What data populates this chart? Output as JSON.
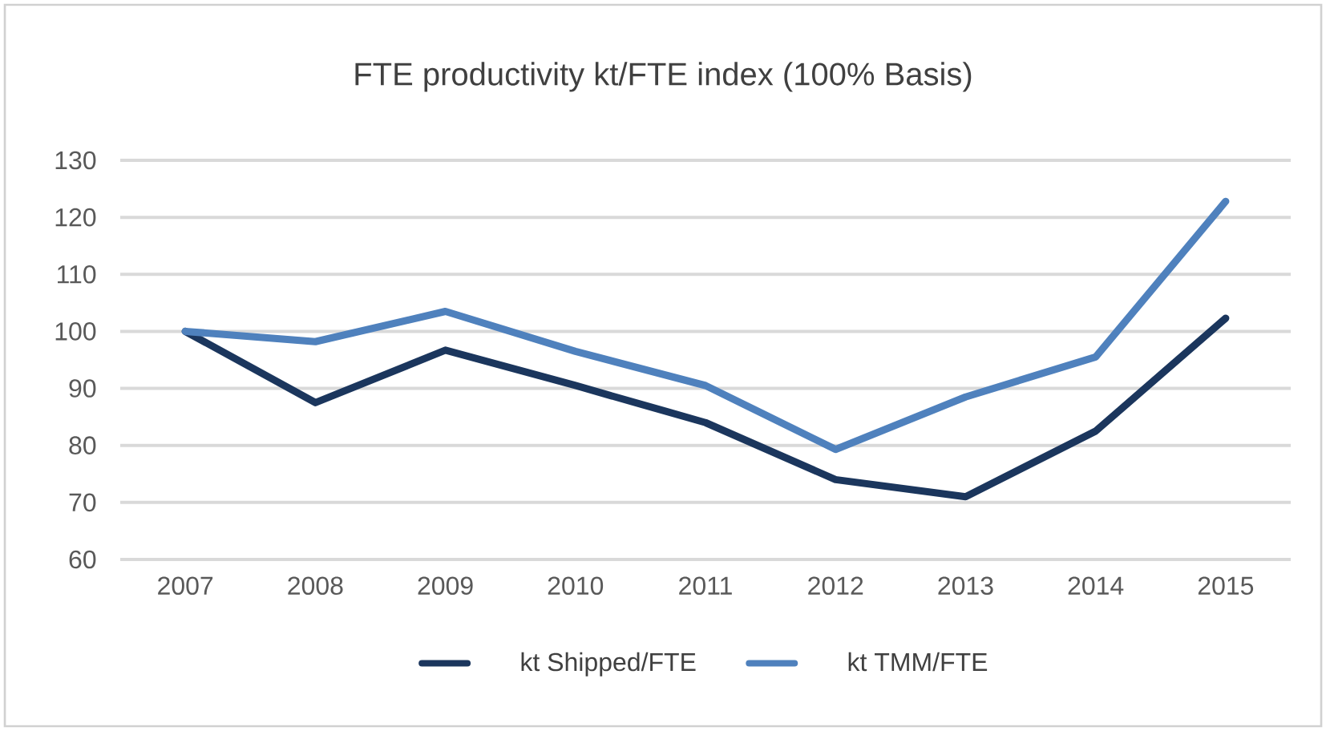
{
  "chart_data": {
    "type": "line",
    "title": "FTE productivity kt/FTE index (100% Basis)",
    "categories": [
      "2007",
      "2008",
      "2009",
      "2010",
      "2011",
      "2012",
      "2013",
      "2014",
      "2015"
    ],
    "series": [
      {
        "name": "kt Shipped/FTE",
        "color": "#1b365d",
        "values": [
          100,
          87.5,
          96.7,
          90.5,
          84,
          74,
          71,
          82.5,
          102.3
        ]
      },
      {
        "name": "kt TMM/FTE",
        "color": "#4f81bd",
        "values": [
          100,
          98.2,
          103.5,
          96.5,
          90.5,
          79.3,
          88.5,
          95.5,
          122.8
        ]
      }
    ],
    "ylim": [
      60,
      130
    ],
    "yticks": [
      60,
      70,
      80,
      90,
      100,
      110,
      120,
      130
    ],
    "grid": "y",
    "legend": "bottom",
    "marker": "none",
    "line_style": "solid"
  }
}
